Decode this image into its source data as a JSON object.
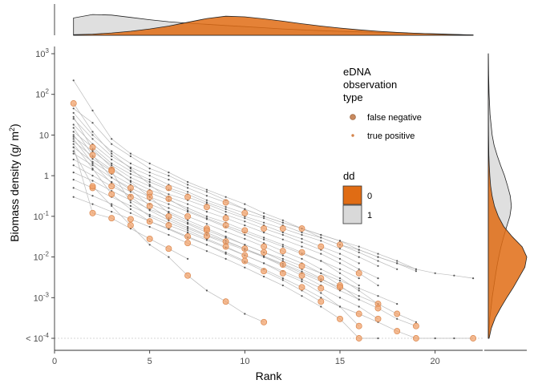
{
  "chart_data": {
    "type": "scatter",
    "title": "",
    "xlabel": "Rank",
    "ylabel": "Biomass density (g/m²)",
    "ylabel_parts": {
      "main": "Biomass density (g/ m",
      "sup": "2",
      "end": ")"
    },
    "x_scale": "linear",
    "y_scale": "log10",
    "xlim": [
      0,
      22.5
    ],
    "ylim": [
      0.0001,
      1000
    ],
    "x_ticks": [
      {
        "value": 0,
        "label": "0"
      },
      {
        "value": 5,
        "label": "5"
      },
      {
        "value": 10,
        "label": "10"
      },
      {
        "value": 15,
        "label": "15"
      },
      {
        "value": 20,
        "label": "20"
      }
    ],
    "y_ticks": [
      {
        "value": 0.0001,
        "base": "< 10",
        "exp": "-4"
      },
      {
        "value": 0.001,
        "base": "10",
        "exp": "-3"
      },
      {
        "value": 0.01,
        "base": "10",
        "exp": "-2"
      },
      {
        "value": 0.1,
        "base": "10",
        "exp": "-1"
      },
      {
        "value": 1,
        "base": "1",
        "exp": ""
      },
      {
        "value": 10,
        "base": "10",
        "exp": ""
      },
      {
        "value": 100,
        "base": "10",
        "exp": "2"
      },
      {
        "value": 1000,
        "base": "10",
        "exp": "3"
      }
    ],
    "floor_line_value": 0.0001,
    "grid": false,
    "legend_position": "top-right inside",
    "legend": {
      "shape_title": [
        "eDNA",
        "observation",
        "type"
      ],
      "shape_items": [
        {
          "label": "false negative",
          "marker": "large-circle",
          "color": "#e0864a"
        },
        {
          "label": "true positive",
          "marker": "small-dot",
          "color": "#e0864a"
        }
      ],
      "fill_title": "dd",
      "fill_items": [
        {
          "label": "0",
          "color": "#e06c14"
        },
        {
          "label": "1",
          "color": "#d9d9d9"
        }
      ]
    },
    "colors": {
      "line": "#b5b5b5",
      "true_positive_marker": "#555555",
      "false_negative_marker": "#f1a066",
      "false_negative_edge": "#d9844a",
      "density_dd0": "#e06c14",
      "density_dd1": "#d9d9d9",
      "density_overlap": "#d8c2b4"
    },
    "series": [
      {
        "values": [
          220,
          40,
          8,
          3.5,
          2,
          1.2,
          0.7,
          0.45,
          0.3,
          0.2,
          0.12,
          0.08,
          0.05,
          0.03,
          0.02,
          0.015,
          0.01,
          0.007,
          0.005,
          0.004,
          0.0035,
          0.003
        ],
        "fn": []
      },
      {
        "values": [
          45,
          20,
          6,
          3,
          1.5,
          1,
          0.6,
          0.4,
          0.25,
          0.15,
          0.1,
          0.07,
          0.05,
          0.035,
          0.025,
          0.018,
          0.012,
          0.008,
          0.005
        ],
        "fn": []
      },
      {
        "values": [
          35,
          10,
          4,
          2,
          1.2,
          0.8,
          0.5,
          0.32,
          0.22,
          0.15,
          0.1,
          0.07,
          0.05,
          0.035,
          0.025,
          0.015,
          0.01,
          0.007,
          0.0045
        ],
        "fn": [
          8,
          12
        ]
      },
      {
        "values": [
          25,
          8,
          3,
          1.6,
          1,
          0.6,
          0.4,
          0.25,
          0.17,
          0.12,
          0.09,
          0.06,
          0.04,
          0.03,
          0.02,
          0.013,
          0.008,
          0.005
        ],
        "fn": [
          9,
          14
        ]
      },
      {
        "values": [
          18,
          6,
          2.5,
          1.3,
          0.8,
          0.5,
          0.35,
          0.22,
          0.15,
          0.1,
          0.07,
          0.05,
          0.035,
          0.025,
          0.016,
          0.01,
          0.006
        ],
        "fn": [
          5,
          11
        ]
      },
      {
        "values": [
          12,
          5,
          2,
          1.1,
          0.7,
          0.45,
          0.3,
          0.2,
          0.13,
          0.09,
          0.06,
          0.04,
          0.028,
          0.018,
          0.012,
          0.007
        ],
        "fn": [
          1,
          6,
          13
        ]
      },
      {
        "values": [
          9,
          4,
          1.8,
          0.9,
          0.55,
          0.35,
          0.25,
          0.17,
          0.11,
          0.075,
          0.05,
          0.035,
          0.023,
          0.015,
          0.009,
          0.005,
          0.003
        ],
        "fn": [
          7,
          10
        ]
      },
      {
        "values": [
          7,
          3,
          1.4,
          0.75,
          0.45,
          0.3,
          0.2,
          0.13,
          0.09,
          0.06,
          0.04,
          0.027,
          0.018,
          0.012,
          0.007,
          0.004,
          0.002
        ],
        "fn": [
          2,
          8,
          15
        ]
      },
      {
        "values": [
          5,
          2.2,
          1.1,
          0.6,
          0.38,
          0.25,
          0.16,
          0.1,
          0.07,
          0.045,
          0.03,
          0.02,
          0.013,
          0.008,
          0.004,
          0.002
        ],
        "fn": [
          4,
          9,
          12
        ]
      },
      {
        "values": [
          3.5,
          1.8,
          0.9,
          0.5,
          0.3,
          0.2,
          0.13,
          0.085,
          0.055,
          0.035,
          0.022,
          0.014,
          0.009,
          0.005,
          0.003,
          0.0015,
          0.0007
        ],
        "fn": [
          3,
          11,
          16
        ]
      },
      {
        "values": [
          2.5,
          1.4,
          0.7,
          0.4,
          0.25,
          0.16,
          0.1,
          0.065,
          0.042,
          0.028,
          0.018,
          0.011,
          0.007,
          0.004,
          0.002,
          0.0009
        ],
        "fn": [
          6,
          10,
          14
        ]
      },
      {
        "values": [
          1.8,
          1,
          0.55,
          0.32,
          0.2,
          0.13,
          0.08,
          0.05,
          0.032,
          0.02,
          0.013,
          0.008,
          0.005,
          0.003,
          0.0016
        ],
        "fn": [
          2,
          7,
          13
        ]
      },
      {
        "values": [
          1.2,
          0.75,
          0.42,
          0.25,
          0.15,
          0.1,
          0.065,
          0.04,
          0.025,
          0.016,
          0.01,
          0.006,
          0.0035,
          0.002
        ],
        "fn": [
          5,
          9,
          12
        ]
      },
      {
        "values": [
          0.8,
          0.5,
          0.3,
          0.18,
          0.11,
          0.07,
          0.045,
          0.028,
          0.018,
          0.011,
          0.007,
          0.004,
          0.0025,
          0.0013,
          0.0006,
          0.0002
        ],
        "fn": [
          1,
          8,
          11,
          15
        ]
      },
      {
        "values": [
          0.5,
          0.32,
          0.2,
          0.12,
          0.075,
          0.048,
          0.03,
          0.02,
          0.012,
          0.0075,
          0.0045,
          0.0027,
          0.0015,
          0.0008
        ],
        "fn": [
          4,
          10,
          13
        ]
      },
      {
        "values": [
          0.3,
          0.2,
          0.13,
          0.085,
          0.055,
          0.035,
          0.022,
          0.014,
          0.009,
          0.0055,
          0.0033,
          0.002,
          0.0011,
          0.0006,
          0.0003,
          0.0001,
          0.0001
        ],
        "fn": [
          3,
          6,
          14,
          15
        ]
      },
      {
        "values": [
          5,
          0.12,
          0.09,
          0.05,
          0.028,
          0.016,
          0.009
        ],
        "fn": [
          1,
          2,
          4,
          5
        ]
      },
      {
        "values": [
          4,
          0.55,
          0.18,
          0.06,
          0.02,
          0.01,
          0.0035,
          0.0015,
          0.0008,
          0.0004,
          0.00025
        ],
        "fn": [
          1,
          3,
          6,
          8,
          10
        ]
      },
      {
        "values": [
          6,
          1.5,
          0.35,
          0.15,
          0.075,
          0.05,
          0.032,
          0.02,
          0.013,
          0.008,
          0.005,
          0.003,
          0.0018,
          0.001,
          0.0006,
          0.0004,
          0.00025,
          0.00015,
          0.0001,
          0.0001,
          0.0001,
          0.0001
        ],
        "fn": [
          2,
          6,
          9,
          12,
          15,
          17,
          18,
          21
        ]
      },
      {
        "values": [
          8,
          2,
          0.65,
          0.3,
          0.14,
          0.08,
          0.05,
          0.033,
          0.022,
          0.015,
          0.01,
          0.0065,
          0.004,
          0.0025,
          0.0015,
          0.0009,
          0.00055,
          0.0003,
          0.0002
        ],
        "fn": [
          3,
          7,
          11,
          16,
          18
        ]
      },
      {
        "values": [
          10,
          2.6,
          1.3,
          0.22,
          0.1,
          0.06,
          0.04,
          0.026,
          0.017,
          0.011,
          0.007,
          0.0045,
          0.0028,
          0.0017,
          0.001,
          0.0006,
          0.0003
        ],
        "fn": [
          2,
          5,
          9,
          13,
          16
        ]
      },
      {
        "values": [
          15,
          3.2,
          0.9,
          0.45,
          0.18,
          0.09,
          0.055,
          0.035,
          0.024,
          0.016,
          0.0105,
          0.0068,
          0.0044,
          0.0028,
          0.0018,
          0.0011,
          0.0007,
          0.0004,
          0.00025
        ],
        "fn": [
          1,
          4,
          8,
          14,
          17
        ]
      },
      {
        "values": [
          28,
          4.5,
          1.6,
          0.7,
          0.3,
          0.12,
          0.07,
          0.045,
          0.03,
          0.02,
          0.013,
          0.009,
          0.006,
          0.004,
          0.0026,
          0.0017,
          0.0011,
          0.0007
        ],
        "fn": [
          4,
          7,
          10,
          12
        ]
      },
      {
        "values": [
          60,
          12,
          3.5,
          1.5,
          0.6,
          0.27,
          0.14,
          0.09,
          0.06,
          0.04,
          0.027,
          0.018,
          0.012,
          0.008,
          0.005,
          0.003
        ],
        "fn": [
          0,
          5,
          8
        ]
      }
    ],
    "rank_density": {
      "x": [
        1,
        2,
        3,
        4,
        5,
        6,
        7,
        8,
        9,
        10,
        11,
        12,
        13,
        14,
        15,
        16,
        17,
        18,
        19,
        20,
        21,
        22
      ],
      "dd0": [
        0.02,
        0.04,
        0.08,
        0.14,
        0.22,
        0.32,
        0.45,
        0.58,
        0.66,
        0.64,
        0.57,
        0.49,
        0.4,
        0.32,
        0.25,
        0.19,
        0.14,
        0.1,
        0.07,
        0.045,
        0.025,
        0.01
      ],
      "dd1": [
        0.6,
        0.72,
        0.7,
        0.62,
        0.54,
        0.47,
        0.42,
        0.38,
        0.34,
        0.3,
        0.26,
        0.22,
        0.19,
        0.16,
        0.14,
        0.12,
        0.1,
        0.08,
        0.065,
        0.05,
        0.03,
        0.012
      ]
    },
    "biomass_density": {
      "log10_y": [
        -4,
        -3.75,
        -3.5,
        -3.25,
        -3,
        -2.75,
        -2.5,
        -2.25,
        -2,
        -1.75,
        -1.5,
        -1.25,
        -1,
        -0.75,
        -0.5,
        -0.25,
        0,
        0.25,
        0.5,
        0.75,
        1,
        1.5,
        2,
        2.5,
        3
      ],
      "dd0": [
        0.02,
        0.08,
        0.18,
        0.32,
        0.48,
        0.65,
        0.8,
        0.95,
        1,
        0.88,
        0.62,
        0.4,
        0.26,
        0.16,
        0.1,
        0.06,
        0.04,
        0.025,
        0.015,
        0.01,
        0.006,
        0.003,
        0.001,
        0,
        0
      ],
      "dd1": [
        0.01,
        0.02,
        0.04,
        0.07,
        0.1,
        0.14,
        0.18,
        0.22,
        0.27,
        0.33,
        0.4,
        0.48,
        0.56,
        0.6,
        0.57,
        0.5,
        0.42,
        0.32,
        0.23,
        0.15,
        0.1,
        0.045,
        0.02,
        0.008,
        0.002
      ]
    }
  }
}
